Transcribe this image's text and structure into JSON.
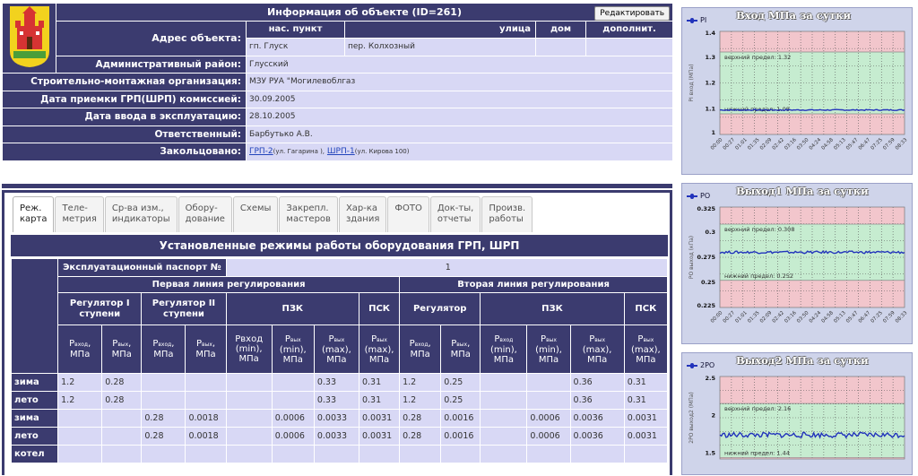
{
  "info": {
    "title": "Информация об объекте (ID=261)",
    "edit_label": "Редактировать",
    "address_label": "Адрес объекта:",
    "addr_headers": [
      "нас. пункт",
      "улица",
      "дом",
      "дополнит."
    ],
    "addr_values": [
      "гп. Глуск",
      "пер. Колхозный",
      "",
      ""
    ],
    "rows": [
      {
        "label": "Административный район:",
        "value": "Глусский"
      },
      {
        "label": "Строительно-монтажная организация:",
        "value": "МЗУ РУА \"Могилевоблгаз"
      },
      {
        "label": "Дата приемки ГРП(ШРП) комиссией:",
        "value": "30.09.2005"
      },
      {
        "label": "Дата ввода в эксплуатацию:",
        "value": "28.10.2005"
      },
      {
        "label": "Ответственный:",
        "value": "Барбутько А.В."
      }
    ],
    "loop_label": "Закольцовано:",
    "loop": {
      "link1": "ГРП-2",
      "note1": "(ул. Гагарина ),",
      "link2": "ШРП-1",
      "note2": "(ул. Кирова 100)"
    }
  },
  "tabs": [
    {
      "l1": "Реж.",
      "l2": "карта"
    },
    {
      "l1": "Теле-",
      "l2": "метрия"
    },
    {
      "l1": "Ср-ва изм.,",
      "l2": "индикаторы"
    },
    {
      "l1": "Обору-",
      "l2": "дование"
    },
    {
      "l1": "Схемы",
      "l2": ""
    },
    {
      "l1": "Закрепл.",
      "l2": "мастеров"
    },
    {
      "l1": "Хар-ка",
      "l2": "здания"
    },
    {
      "l1": "ФОТО",
      "l2": ""
    },
    {
      "l1": "Док-ты,",
      "l2": "отчеты"
    },
    {
      "l1": "Произв.",
      "l2": "работы"
    }
  ],
  "regime": {
    "title": "Установленные режимы работы оборудования ГРП, ШРП",
    "passport_label": "Эксплуатационный паспорт №",
    "passport_value": "1",
    "line1": "Первая линия регулирования",
    "line2": "Вторая линия регулирования",
    "reg1": "Регулятор I ступени",
    "reg2": "Регулятор II ступени",
    "pzk": "ПЗК",
    "psk": "ПСК",
    "regulator": "Регулятор",
    "rows": [
      {
        "label": "зима",
        "cells": [
          "1.2",
          "0.28",
          "",
          "",
          "",
          "",
          "0.33",
          "0.31",
          "1.2",
          "0.25",
          "",
          "",
          "0.36",
          "0.31"
        ]
      },
      {
        "label": "лето",
        "cells": [
          "1.2",
          "0.28",
          "",
          "",
          "",
          "",
          "0.33",
          "0.31",
          "1.2",
          "0.25",
          "",
          "",
          "0.36",
          "0.31"
        ]
      },
      {
        "label": "зима",
        "cells": [
          "",
          "",
          "0.28",
          "0.0018",
          "",
          "0.0006",
          "0.0033",
          "0.0031",
          "0.28",
          "0.0016",
          "",
          "0.0006",
          "0.0036",
          "0.0031"
        ]
      },
      {
        "label": "лето",
        "cells": [
          "",
          "",
          "0.28",
          "0.0018",
          "",
          "0.0006",
          "0.0033",
          "0.0031",
          "0.28",
          "0.0016",
          "",
          "0.0006",
          "0.0036",
          "0.0031"
        ]
      },
      {
        "label": "котел",
        "cells": [
          "",
          "",
          "",
          "",
          "",
          "",
          "",
          "",
          "",
          "",
          "",
          "",
          "",
          ""
        ]
      }
    ]
  },
  "charts": [
    {
      "title": "Вход МПа за сутки",
      "legend": "PI",
      "ylabel": "PI вход (МПа)",
      "yticks": [
        "1.4",
        "1.3",
        "1.2",
        "1.1",
        "1"
      ],
      "ymin": 1.0,
      "ymax": 1.4,
      "upper_text": "верхний предел: 1.32",
      "lower_text": "нижний предел: 1.08",
      "upper": 1.32,
      "lower": 1.08,
      "level": 1.095,
      "noise": 0.002
    },
    {
      "title": "Выход1 МПа за сутки",
      "legend": "PO",
      "ylabel": "PO выход (кПа)",
      "yticks": [
        "0.325",
        "0.3",
        "0.275",
        "0.25",
        "0.225"
      ],
      "ymin": 0.225,
      "ymax": 0.325,
      "upper_text": "верхний предел: 0.308",
      "lower_text": "нижний предел: 0.252",
      "upper": 0.308,
      "lower": 0.252,
      "level": 0.28,
      "noise": 0.0012
    },
    {
      "title": "Выход2 МПа за сутки",
      "legend": "2PO",
      "ylabel": "2PO выход2 (МПа)",
      "yticks": [
        "2.5",
        "2",
        "1.5"
      ],
      "ymin": 1.42,
      "ymax": 2.52,
      "upper_text": "верхний предел: 2.16",
      "lower_text": "нижний предел: 1.44",
      "upper": 2.16,
      "lower": 1.44,
      "level": 1.74,
      "noise": 0.035
    }
  ],
  "chart_xticks": [
    "00:00",
    "00:27",
    "01:01",
    "01:35",
    "02:09",
    "02:42",
    "03:16",
    "03:50",
    "04:24",
    "04:58",
    "05:13",
    "05:47",
    "06:47",
    "07:25",
    "07:59",
    "08:33"
  ],
  "colors": {
    "header": "#3b3b6f",
    "cell": "#d8d8f5",
    "upper_zone": "#f2c6cc",
    "ok_zone": "#c6ecd0",
    "series": "#2233bb"
  }
}
